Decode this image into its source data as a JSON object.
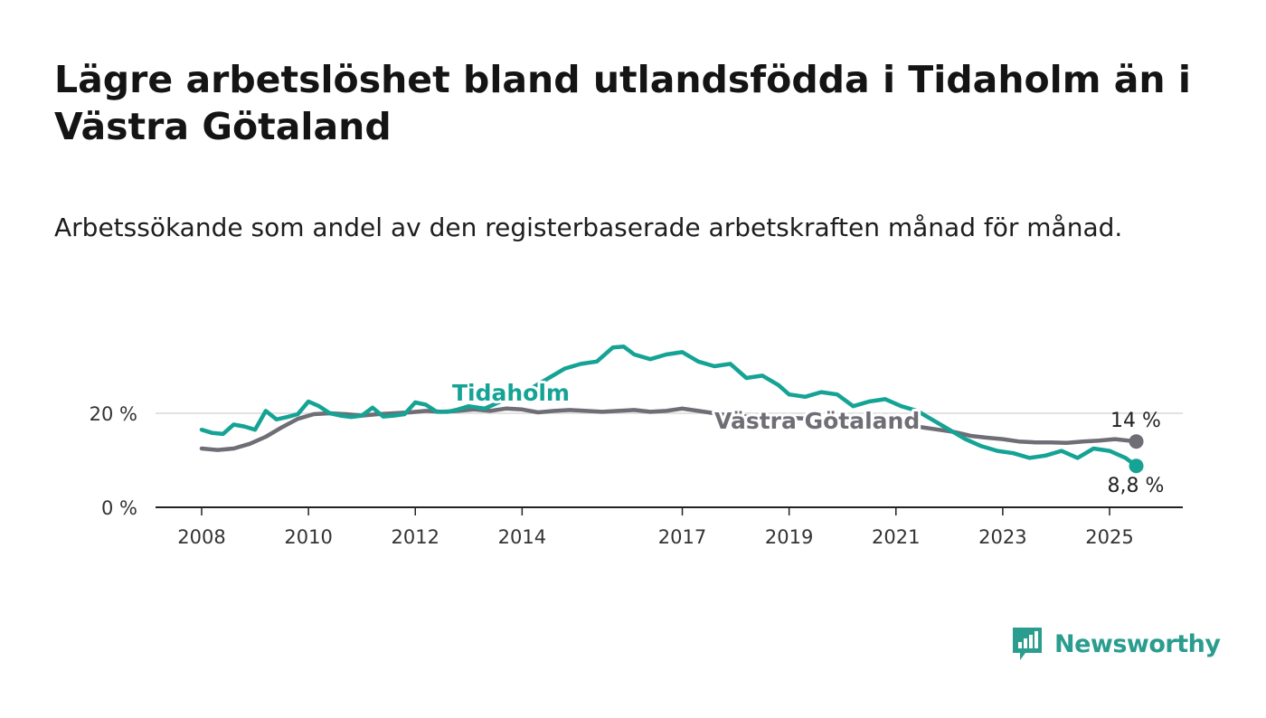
{
  "header": {
    "title": "Lägre arbetslöshet bland utlandsfödda i Tidaholm än i Västra Götaland",
    "subtitle": "Arbetssökande som andel av den registerbaserade arbetskraften månad för månad."
  },
  "brand": {
    "name": "Newsworthy",
    "icon": "newsworthy-logo-icon",
    "color": "#2a9d8f"
  },
  "chart_data": {
    "type": "line",
    "x_ticks": [
      "2008",
      "2010",
      "2012",
      "2014",
      "2017",
      "2019",
      "2021",
      "2023",
      "2025"
    ],
    "y_ticks": [
      {
        "value": 0,
        "label": "0 %"
      },
      {
        "value": 20,
        "label": "20 %"
      }
    ],
    "xlim": [
      2007.5,
      2026.4
    ],
    "ylim": [
      0,
      40
    ],
    "grid": "horizontal",
    "legend": "inline-labels",
    "series": [
      {
        "name": "Tidaholm",
        "color": "#14a394",
        "end_label": "8,8 %",
        "points": [
          [
            2008.0,
            16.5
          ],
          [
            2008.2,
            15.8
          ],
          [
            2008.4,
            15.6
          ],
          [
            2008.6,
            17.6
          ],
          [
            2008.8,
            17.2
          ],
          [
            2009.0,
            16.5
          ],
          [
            2009.2,
            20.5
          ],
          [
            2009.4,
            18.7
          ],
          [
            2009.6,
            19.2
          ],
          [
            2009.8,
            19.8
          ],
          [
            2010.0,
            22.5
          ],
          [
            2010.2,
            21.5
          ],
          [
            2010.4,
            20.0
          ],
          [
            2010.6,
            19.5
          ],
          [
            2010.8,
            19.2
          ],
          [
            2011.0,
            19.5
          ],
          [
            2011.2,
            21.2
          ],
          [
            2011.4,
            19.3
          ],
          [
            2011.6,
            19.5
          ],
          [
            2011.8,
            19.8
          ],
          [
            2012.0,
            22.3
          ],
          [
            2012.2,
            21.8
          ],
          [
            2012.4,
            20.3
          ],
          [
            2012.6,
            20.3
          ],
          [
            2012.8,
            20.8
          ],
          [
            2013.0,
            21.5
          ],
          [
            2013.3,
            21.0
          ],
          [
            2013.6,
            22.5
          ],
          [
            2013.9,
            24.0
          ],
          [
            2014.2,
            25.5
          ],
          [
            2014.5,
            27.5
          ],
          [
            2014.8,
            29.5
          ],
          [
            2015.1,
            30.5
          ],
          [
            2015.4,
            31.0
          ],
          [
            2015.7,
            34.0
          ],
          [
            2015.9,
            34.2
          ],
          [
            2016.1,
            32.5
          ],
          [
            2016.4,
            31.5
          ],
          [
            2016.7,
            32.5
          ],
          [
            2017.0,
            33.0
          ],
          [
            2017.3,
            31.0
          ],
          [
            2017.6,
            30.0
          ],
          [
            2017.9,
            30.5
          ],
          [
            2018.2,
            27.5
          ],
          [
            2018.5,
            28.0
          ],
          [
            2018.8,
            26.0
          ],
          [
            2019.0,
            24.0
          ],
          [
            2019.3,
            23.5
          ],
          [
            2019.6,
            24.5
          ],
          [
            2019.9,
            24.0
          ],
          [
            2020.2,
            21.5
          ],
          [
            2020.5,
            22.5
          ],
          [
            2020.8,
            23.0
          ],
          [
            2021.1,
            21.5
          ],
          [
            2021.4,
            20.5
          ],
          [
            2021.7,
            18.5
          ],
          [
            2022.0,
            16.5
          ],
          [
            2022.3,
            14.5
          ],
          [
            2022.6,
            13.0
          ],
          [
            2022.9,
            12.0
          ],
          [
            2023.2,
            11.5
          ],
          [
            2023.5,
            10.5
          ],
          [
            2023.8,
            11.0
          ],
          [
            2024.1,
            12.0
          ],
          [
            2024.4,
            10.5
          ],
          [
            2024.7,
            12.5
          ],
          [
            2025.0,
            12.0
          ],
          [
            2025.3,
            10.5
          ],
          [
            2025.5,
            8.8
          ]
        ]
      },
      {
        "name": "Västra Götaland",
        "color": "#6f6d75",
        "end_label": "14 %",
        "points": [
          [
            2008.0,
            12.5
          ],
          [
            2008.3,
            12.2
          ],
          [
            2008.6,
            12.5
          ],
          [
            2008.9,
            13.5
          ],
          [
            2009.2,
            15.0
          ],
          [
            2009.5,
            17.0
          ],
          [
            2009.8,
            18.8
          ],
          [
            2010.1,
            19.8
          ],
          [
            2010.4,
            20.0
          ],
          [
            2010.7,
            19.8
          ],
          [
            2011.0,
            19.5
          ],
          [
            2011.3,
            19.8
          ],
          [
            2011.6,
            20.0
          ],
          [
            2011.9,
            20.2
          ],
          [
            2012.2,
            20.5
          ],
          [
            2012.5,
            20.3
          ],
          [
            2012.8,
            20.5
          ],
          [
            2013.1,
            20.8
          ],
          [
            2013.4,
            20.5
          ],
          [
            2013.7,
            21.0
          ],
          [
            2014.0,
            20.8
          ],
          [
            2014.3,
            20.2
          ],
          [
            2014.6,
            20.5
          ],
          [
            2014.9,
            20.7
          ],
          [
            2015.2,
            20.5
          ],
          [
            2015.5,
            20.3
          ],
          [
            2015.8,
            20.5
          ],
          [
            2016.1,
            20.7
          ],
          [
            2016.4,
            20.3
          ],
          [
            2016.7,
            20.5
          ],
          [
            2017.0,
            21.0
          ],
          [
            2017.3,
            20.5
          ],
          [
            2017.6,
            20.0
          ],
          [
            2017.9,
            19.5
          ],
          [
            2018.2,
            19.3
          ],
          [
            2018.5,
            19.3
          ],
          [
            2018.8,
            19.0
          ],
          [
            2019.1,
            19.0
          ],
          [
            2019.4,
            18.8
          ],
          [
            2019.7,
            18.5
          ],
          [
            2020.0,
            18.3
          ],
          [
            2020.3,
            18.5
          ],
          [
            2020.6,
            18.3
          ],
          [
            2020.9,
            18.0
          ],
          [
            2021.2,
            17.5
          ],
          [
            2021.5,
            17.0
          ],
          [
            2021.8,
            16.5
          ],
          [
            2022.1,
            16.0
          ],
          [
            2022.4,
            15.2
          ],
          [
            2022.7,
            14.8
          ],
          [
            2023.0,
            14.5
          ],
          [
            2023.3,
            14.0
          ],
          [
            2023.6,
            13.8
          ],
          [
            2023.9,
            13.8
          ],
          [
            2024.2,
            13.7
          ],
          [
            2024.5,
            14.0
          ],
          [
            2024.8,
            14.2
          ],
          [
            2025.1,
            14.5
          ],
          [
            2025.5,
            14.0
          ]
        ]
      }
    ]
  }
}
